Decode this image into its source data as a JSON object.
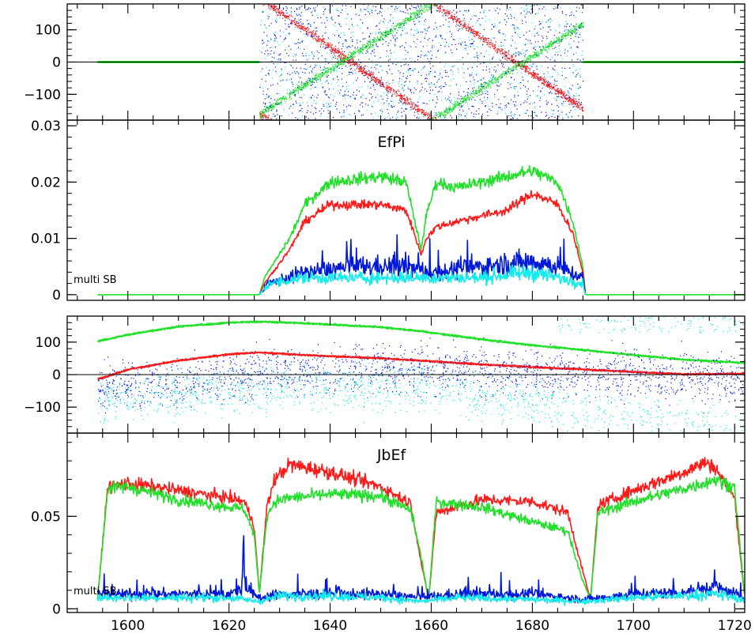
{
  "colors": {
    "red": "#ff1a1a",
    "green": "#22e02a",
    "blue": "#0018d8",
    "cyan": "#12ecec",
    "axis": "#000000"
  },
  "chart_data": [
    {
      "type": "scatter",
      "title": "",
      "xlabel": "",
      "ylabel": "",
      "xlim": [
        1588,
        1722
      ],
      "ylim": [
        -180,
        180
      ],
      "y_ticks": [
        -100,
        0,
        100
      ],
      "y_tick_labels": [
        "−100",
        "0",
        "100"
      ],
      "zero_line": true,
      "series": [
        {
          "color": "red",
          "kind": "phase",
          "active_range": [
            1626,
            1690
          ],
          "slope_deg_per_x": -11,
          "offset_deg": 200
        },
        {
          "color": "green",
          "kind": "phase",
          "active_range": [
            1626,
            1690
          ],
          "slope_deg_per_x": 10,
          "offset_deg": -160
        },
        {
          "color": "green",
          "kind": "flat",
          "x": [
            1594,
            1626,
            1690,
            1722
          ],
          "values": [
            0,
            0,
            0,
            0
          ]
        },
        {
          "color": "blue",
          "kind": "noise",
          "active_range": [
            1626,
            1690
          ],
          "y_range": [
            -180,
            180
          ]
        },
        {
          "color": "cyan",
          "kind": "noise",
          "active_range": [
            1626,
            1690
          ],
          "y_range": [
            -180,
            180
          ]
        }
      ]
    },
    {
      "type": "line",
      "title": "EfPi",
      "note": "multi SB",
      "xlabel": "",
      "ylabel": "",
      "xlim": [
        1588,
        1722
      ],
      "ylim": [
        -0.001,
        0.031
      ],
      "y_ticks": [
        0,
        0.01,
        0.02,
        0.03
      ],
      "y_tick_labels": [
        "0",
        "0.01",
        "0.02",
        "0.03"
      ],
      "series": [
        {
          "color": "green",
          "x": [
            1594,
            1626,
            1627,
            1632,
            1635,
            1640,
            1650,
            1655,
            1657,
            1658,
            1659,
            1661,
            1665,
            1675,
            1680,
            1685,
            1688,
            1690,
            1690.5,
            1722
          ],
          "values": [
            0,
            0,
            0.003,
            0.01,
            0.016,
            0.02,
            0.021,
            0.02,
            0.012,
            0.008,
            0.014,
            0.02,
            0.019,
            0.021,
            0.022,
            0.02,
            0.013,
            0.005,
            0,
            0
          ]
        },
        {
          "color": "red",
          "x": [
            1626,
            1627,
            1632,
            1635,
            1640,
            1650,
            1655,
            1657,
            1658,
            1659,
            1661,
            1665,
            1675,
            1680,
            1685,
            1688,
            1690,
            1690.5
          ],
          "values": [
            0,
            0.002,
            0.008,
            0.013,
            0.016,
            0.016,
            0.015,
            0.01,
            0.007,
            0.01,
            0.012,
            0.013,
            0.015,
            0.018,
            0.016,
            0.011,
            0.004,
            0
          ]
        },
        {
          "color": "blue",
          "x": [
            1626,
            1628,
            1635,
            1645,
            1655,
            1660,
            1670,
            1680,
            1685,
            1690,
            1690.5
          ],
          "values": [
            0,
            0.002,
            0.004,
            0.005,
            0.005,
            0.004,
            0.005,
            0.006,
            0.005,
            0.003,
            0
          ]
        },
        {
          "color": "cyan",
          "x": [
            1626,
            1628,
            1635,
            1645,
            1655,
            1660,
            1670,
            1680,
            1685,
            1690,
            1690.5
          ],
          "values": [
            0,
            0.002,
            0.003,
            0.003,
            0.003,
            0.003,
            0.003,
            0.004,
            0.003,
            0.002,
            0
          ]
        }
      ]
    },
    {
      "type": "scatter",
      "title": "",
      "xlabel": "",
      "ylabel": "",
      "xlim": [
        1588,
        1722
      ],
      "ylim": [
        -180,
        180
      ],
      "y_ticks": [
        -100,
        0,
        100
      ],
      "y_tick_labels": [
        "−100",
        "0",
        "100"
      ],
      "zero_line": true,
      "series": [
        {
          "color": "green",
          "x": [
            1594,
            1600,
            1610,
            1620,
            1626,
            1635,
            1650,
            1658,
            1670,
            1680,
            1690,
            1700,
            1710,
            1722
          ],
          "values": [
            105,
            125,
            150,
            162,
            165,
            160,
            148,
            135,
            110,
            92,
            78,
            62,
            48,
            38
          ]
        },
        {
          "color": "red",
          "x": [
            1594,
            1600,
            1610,
            1620,
            1626,
            1635,
            1650,
            1658,
            1670,
            1680,
            1690,
            1700,
            1710,
            1722
          ],
          "values": [
            -12,
            18,
            45,
            65,
            70,
            62,
            52,
            45,
            33,
            25,
            18,
            10,
            3,
            5
          ]
        },
        {
          "color": "blue",
          "kind": "noise",
          "x": [
            1594,
            1610,
            1626,
            1650,
            1670,
            1690,
            1710,
            1722
          ],
          "center": [
            -40,
            -20,
            5,
            20,
            15,
            5,
            -5,
            -10
          ],
          "spread": 70
        },
        {
          "color": "cyan",
          "kind": "noise",
          "x": [
            1594,
            1610,
            1626,
            1650,
            1670,
            1690,
            1710,
            1722
          ],
          "center": [
            -80,
            -60,
            -40,
            -30,
            -60,
            -110,
            -140,
            -150
          ],
          "spread": 70,
          "upper_band": [
            1685,
            1722
          ]
        }
      ]
    },
    {
      "type": "line",
      "title": "JbEf",
      "note": "multi SB",
      "xlabel": "",
      "ylabel": "",
      "xlim": [
        1588,
        1722
      ],
      "ylim": [
        -0.002,
        0.095
      ],
      "y_ticks": [
        0,
        0.05
      ],
      "y_tick_labels": [
        "0",
        "0.05"
      ],
      "x_ticks": [
        1600,
        1620,
        1640,
        1660,
        1680,
        1700,
        1720
      ],
      "x_tick_labels": [
        "1600",
        "1620",
        "1640",
        "1660",
        "1680",
        "1700",
        "1720"
      ],
      "series": [
        {
          "color": "red",
          "x": [
            1594,
            1596,
            1600,
            1610,
            1620,
            1623,
            1625,
            1626,
            1627.5,
            1629,
            1632,
            1640,
            1650,
            1656,
            1658,
            1659.5,
            1661,
            1670,
            1680,
            1687,
            1690,
            1691.5,
            1693,
            1700,
            1710,
            1714,
            1716,
            1720,
            1722
          ],
          "values": [
            0.005,
            0.066,
            0.068,
            0.064,
            0.06,
            0.058,
            0.045,
            0.008,
            0.055,
            0.07,
            0.078,
            0.074,
            0.066,
            0.057,
            0.025,
            0.005,
            0.052,
            0.059,
            0.058,
            0.052,
            0.02,
            0.005,
            0.056,
            0.064,
            0.074,
            0.079,
            0.077,
            0.06,
            0.006
          ]
        },
        {
          "color": "green",
          "x": [
            1594,
            1596,
            1600,
            1610,
            1620,
            1623,
            1625,
            1626,
            1627.5,
            1629,
            1632,
            1640,
            1650,
            1656,
            1658,
            1659.5,
            1661,
            1670,
            1680,
            1687,
            1690,
            1691.5,
            1693,
            1700,
            1710,
            1714,
            1716,
            1720,
            1722
          ],
          "values": [
            0.005,
            0.065,
            0.066,
            0.059,
            0.055,
            0.054,
            0.04,
            0.008,
            0.05,
            0.058,
            0.06,
            0.062,
            0.061,
            0.053,
            0.028,
            0.005,
            0.058,
            0.055,
            0.047,
            0.042,
            0.015,
            0.005,
            0.052,
            0.058,
            0.065,
            0.068,
            0.07,
            0.066,
            0.006
          ]
        },
        {
          "color": "blue",
          "x": [
            1594,
            1610,
            1620,
            1622.5,
            1622.9,
            1623.3,
            1626,
            1630,
            1640,
            1650,
            1658,
            1665,
            1680,
            1690,
            1700,
            1710,
            1716,
            1722
          ],
          "values": [
            0.008,
            0.008,
            0.008,
            0.01,
            0.038,
            0.01,
            0.006,
            0.008,
            0.008,
            0.008,
            0.006,
            0.008,
            0.008,
            0.005,
            0.008,
            0.009,
            0.012,
            0.006
          ]
        },
        {
          "color": "cyan",
          "x": [
            1594,
            1610,
            1620,
            1626,
            1630,
            1640,
            1650,
            1658,
            1665,
            1680,
            1690,
            1700,
            1710,
            1716,
            1722
          ],
          "values": [
            0.006,
            0.006,
            0.006,
            0.004,
            0.007,
            0.007,
            0.006,
            0.004,
            0.006,
            0.005,
            0.004,
            0.006,
            0.007,
            0.008,
            0.005
          ]
        }
      ]
    }
  ]
}
